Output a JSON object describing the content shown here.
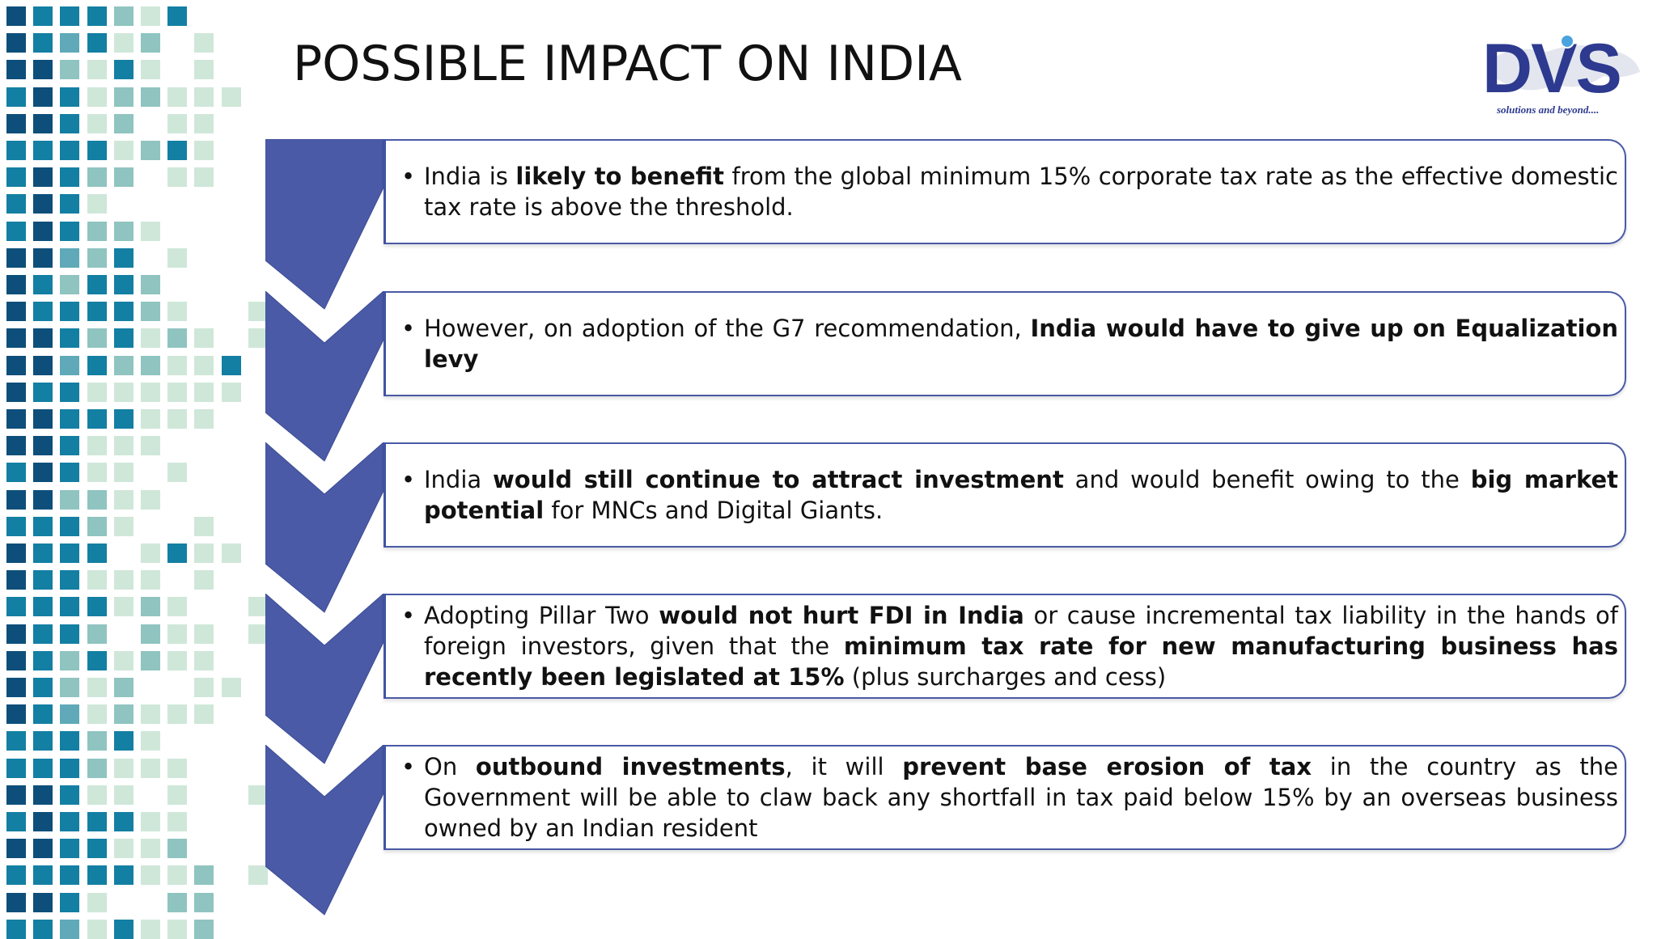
{
  "slide": {
    "title": "POSSIBLE IMPACT ON INDIA"
  },
  "logo": {
    "brand": "DVS",
    "tagline": "solutions and beyond....",
    "color": "#2d3a8f"
  },
  "colors": {
    "chevron": "#4a5aa6",
    "border": "#4a5aa6",
    "mosaic": [
      "#0d4f7a",
      "#137fa3",
      "#5fa9b8",
      "#8fc4c0",
      "#cfe7d9"
    ]
  },
  "points": [
    [
      {
        "t": "India is ",
        "b": false
      },
      {
        "t": "likely to benefit",
        "b": true
      },
      {
        "t": " from the global minimum 15% corporate tax rate as the effective domestic tax rate is above the threshold.",
        "b": false
      }
    ],
    [
      {
        "t": "However, on adoption of the G7 recommendation, ",
        "b": false
      },
      {
        "t": "India would have to give up on Equalization levy",
        "b": true
      }
    ],
    [
      {
        "t": "India ",
        "b": false
      },
      {
        "t": "would still continue to attract investment",
        "b": true
      },
      {
        "t": " and would benefit owing to the ",
        "b": false
      },
      {
        "t": "big market potential",
        "b": true
      },
      {
        "t": " for MNCs and Digital Giants.",
        "b": false
      }
    ],
    [
      {
        "t": "Adopting Pillar Two ",
        "b": false
      },
      {
        "t": "would not hurt FDI in India",
        "b": true
      },
      {
        "t": " or cause incremental tax liability in the hands of foreign investors, given that the ",
        "b": false
      },
      {
        "t": "minimum tax rate for new manufacturing business has recently been legislated at 15%",
        "b": true
      },
      {
        "t": " (plus surcharges and cess)",
        "b": false
      }
    ],
    [
      {
        "t": "On ",
        "b": false
      },
      {
        "t": "outbound investments",
        "b": true
      },
      {
        "t": ", it will ",
        "b": false
      },
      {
        "t": "prevent base erosion of tax",
        "b": true
      },
      {
        "t": " in the country as the Government will be able to claw back any shortfall in tax paid below 15% by an overseas business owned by an Indian resident",
        "b": false
      }
    ]
  ]
}
